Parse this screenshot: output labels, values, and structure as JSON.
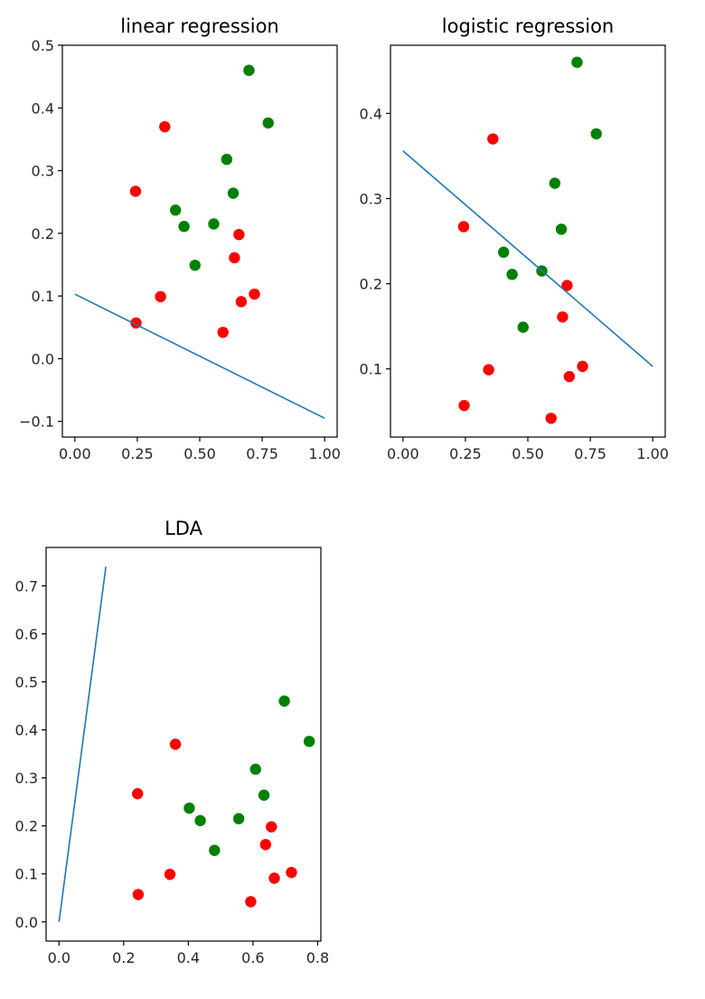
{
  "colors": {
    "class_red": "#ff0000",
    "class_green": "#008000",
    "line": "#1f77b4"
  },
  "chart_data": [
    {
      "type": "scatter",
      "title": "linear regression",
      "xlabel": "",
      "ylabel": "",
      "xlim": [
        -0.05,
        1.05
      ],
      "ylim": [
        -0.125,
        0.5
      ],
      "xticks": [
        0.0,
        0.25,
        0.5,
        0.75,
        1.0
      ],
      "xtick_labels": [
        "0.00",
        "0.25",
        "0.50",
        "0.75",
        "1.00"
      ],
      "yticks": [
        -0.1,
        0.0,
        0.1,
        0.2,
        0.3,
        0.4,
        0.5
      ],
      "ytick_labels": [
        "−0.1",
        "0.0",
        "0.1",
        "0.2",
        "0.3",
        "0.4",
        "0.5"
      ],
      "grid": false,
      "series": [
        {
          "color": "red",
          "x": [
            0.243,
            0.343,
            0.36,
            0.245,
            0.639,
            0.657,
            0.666,
            0.719,
            0.593
          ],
          "y": [
            0.267,
            0.099,
            0.37,
            0.057,
            0.161,
            0.198,
            0.091,
            0.103,
            0.042
          ]
        },
        {
          "color": "green",
          "x": [
            0.697,
            0.774,
            0.608,
            0.634,
            0.556,
            0.403,
            0.437,
            0.481
          ],
          "y": [
            0.46,
            0.376,
            0.318,
            0.264,
            0.215,
            0.237,
            0.211,
            0.149
          ]
        }
      ],
      "line": {
        "x": [
          0.0,
          1.0
        ],
        "y": [
          0.103,
          -0.095
        ]
      }
    },
    {
      "type": "scatter",
      "title": "logistic regression",
      "xlabel": "",
      "ylabel": "",
      "xlim": [
        -0.05,
        1.05
      ],
      "ylim": [
        0.02,
        0.48
      ],
      "xticks": [
        0.0,
        0.25,
        0.5,
        0.75,
        1.0
      ],
      "xtick_labels": [
        "0.00",
        "0.25",
        "0.50",
        "0.75",
        "1.00"
      ],
      "yticks": [
        0.1,
        0.2,
        0.3,
        0.4
      ],
      "ytick_labels": [
        "0.1",
        "0.2",
        "0.3",
        "0.4"
      ],
      "grid": false,
      "series": [
        {
          "color": "red",
          "x": [
            0.243,
            0.343,
            0.36,
            0.245,
            0.639,
            0.657,
            0.666,
            0.719,
            0.593
          ],
          "y": [
            0.267,
            0.099,
            0.37,
            0.057,
            0.161,
            0.198,
            0.091,
            0.103,
            0.042
          ]
        },
        {
          "color": "green",
          "x": [
            0.697,
            0.774,
            0.608,
            0.634,
            0.556,
            0.403,
            0.437,
            0.481
          ],
          "y": [
            0.46,
            0.376,
            0.318,
            0.264,
            0.215,
            0.237,
            0.211,
            0.149
          ]
        }
      ],
      "line": {
        "x": [
          0.0,
          1.0
        ],
        "y": [
          0.356,
          0.103
        ]
      }
    },
    {
      "type": "scatter",
      "title": "LDA",
      "xlabel": "",
      "ylabel": "",
      "xlim": [
        -0.04,
        0.81
      ],
      "ylim": [
        -0.04,
        0.78
      ],
      "xticks": [
        0.0,
        0.2,
        0.4,
        0.6,
        0.8
      ],
      "xtick_labels": [
        "0.0",
        "0.2",
        "0.4",
        "0.6",
        "0.8"
      ],
      "yticks": [
        0.0,
        0.1,
        0.2,
        0.3,
        0.4,
        0.5,
        0.6,
        0.7
      ],
      "ytick_labels": [
        "0.0",
        "0.1",
        "0.2",
        "0.3",
        "0.4",
        "0.5",
        "0.6",
        "0.7"
      ],
      "grid": false,
      "series": [
        {
          "color": "red",
          "x": [
            0.243,
            0.343,
            0.36,
            0.245,
            0.639,
            0.657,
            0.666,
            0.719,
            0.593
          ],
          "y": [
            0.267,
            0.099,
            0.37,
            0.057,
            0.161,
            0.198,
            0.091,
            0.103,
            0.042
          ]
        },
        {
          "color": "green",
          "x": [
            0.697,
            0.774,
            0.608,
            0.634,
            0.556,
            0.403,
            0.437,
            0.481
          ],
          "y": [
            0.46,
            0.376,
            0.318,
            0.264,
            0.215,
            0.237,
            0.211,
            0.149
          ]
        }
      ],
      "line": {
        "x": [
          0.0,
          0.145
        ],
        "y": [
          0.0,
          0.74
        ]
      }
    }
  ]
}
